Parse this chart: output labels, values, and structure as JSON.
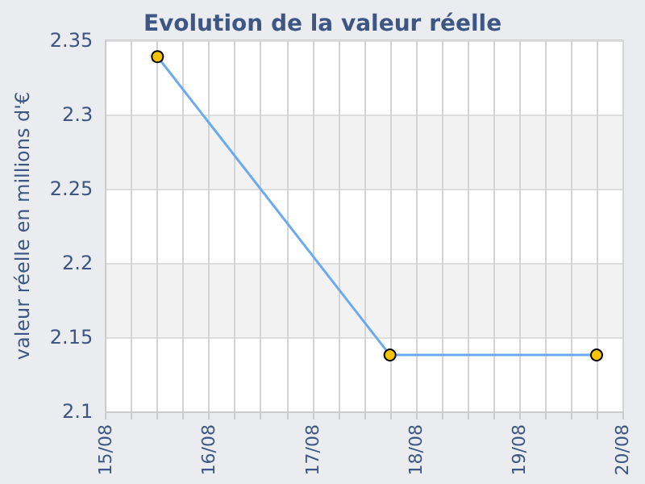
{
  "chart_data": {
    "type": "line",
    "title": "Evolution de la valeur réelle",
    "ylabel": "valeur réelle en millions d'€",
    "x": [
      "--08-15T12:00",
      "--08-17T18:00",
      "--08-19T18:00"
    ],
    "series": [
      {
        "color": "#6aaaf0",
        "colors": [
          "#f5c400",
          "#f5c400",
          "#f5c400"
        ],
        "values": [
          2.339,
          2.138,
          2.138
        ]
      }
    ],
    "xlim": [
      "--08-15",
      "--08-20"
    ],
    "xticks": [
      {
        "value": "--08-15",
        "label": "15/08"
      },
      {
        "value": "--08-15T06:00",
        "label": null
      },
      {
        "value": "--08-15T12:00",
        "label": null
      },
      {
        "value": "--08-15T18:00",
        "label": null
      },
      {
        "value": "--08-16",
        "label": "16/08"
      },
      {
        "value": "--08-16T06:00",
        "label": null
      },
      {
        "value": "--08-16T12:00",
        "label": null
      },
      {
        "value": "--08-16T18:00",
        "label": null
      },
      {
        "value": "--08-17",
        "label": "17/08"
      },
      {
        "value": "--08-17T06:00",
        "label": null
      },
      {
        "value": "--08-17T12:00",
        "label": null
      },
      {
        "value": "--08-17T18:00",
        "label": null
      },
      {
        "value": "--08-18",
        "label": "18/08"
      },
      {
        "value": "--08-18T06:00",
        "label": null
      },
      {
        "value": "--08-18T12:00",
        "label": null
      },
      {
        "value": "--08-18T18:00",
        "label": null
      },
      {
        "value": "--08-19",
        "label": "19/08"
      },
      {
        "value": "--08-19T06:00",
        "label": null
      },
      {
        "value": "--08-19T12:00",
        "label": null
      },
      {
        "value": "--08-19T18:00",
        "label": null
      },
      {
        "value": "--08-20",
        "label": "20/08"
      }
    ],
    "ylim": [
      2.1,
      2.35
    ],
    "yticks": [
      2.1,
      2.15,
      2.2,
      2.25,
      2.3,
      2.35
    ],
    "grid": true,
    "marker": "circle",
    "line_style": "solid"
  }
}
